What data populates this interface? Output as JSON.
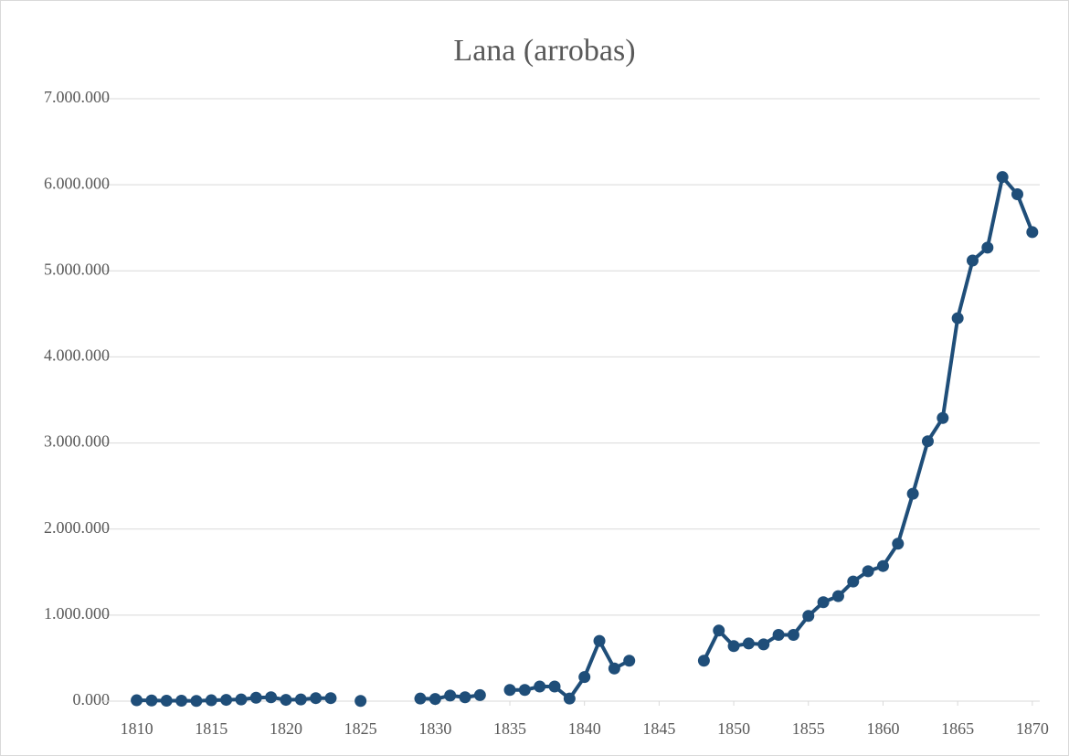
{
  "chart_data": {
    "type": "line",
    "title": "Lana (arrobas)",
    "x": [
      1810,
      1811,
      1812,
      1813,
      1814,
      1815,
      1816,
      1817,
      1818,
      1819,
      1820,
      1821,
      1822,
      1823,
      1824,
      1825,
      1826,
      1827,
      1828,
      1829,
      1830,
      1831,
      1832,
      1833,
      1834,
      1835,
      1836,
      1837,
      1838,
      1839,
      1840,
      1841,
      1842,
      1843,
      1844,
      1845,
      1846,
      1847,
      1848,
      1849,
      1850,
      1851,
      1852,
      1853,
      1854,
      1855,
      1856,
      1857,
      1858,
      1859,
      1860,
      1861,
      1862,
      1863,
      1864,
      1865,
      1866,
      1867,
      1868,
      1869,
      1870
    ],
    "series": [
      {
        "name": "Lana (arrobas)",
        "color": "#1f4e79",
        "values": [
          10000,
          8000,
          5000,
          5000,
          3000,
          10000,
          15000,
          20000,
          40000,
          45000,
          15000,
          20000,
          35000,
          35000,
          null,
          3000,
          null,
          null,
          null,
          30000,
          25000,
          65000,
          45000,
          70000,
          null,
          130000,
          130000,
          170000,
          170000,
          30000,
          280000,
          700000,
          380000,
          470000,
          null,
          null,
          null,
          null,
          470000,
          820000,
          640000,
          670000,
          660000,
          770000,
          770000,
          990000,
          1150000,
          1220000,
          1390000,
          1510000,
          1570000,
          1830000,
          2410000,
          3020000,
          3290000,
          4450000,
          5120000,
          5270000,
          6090000,
          5890000,
          5450000
        ]
      }
    ],
    "xlim": [
      1807.7,
      1870.5
    ],
    "xticks": [
      1810,
      1815,
      1820,
      1825,
      1830,
      1835,
      1840,
      1845,
      1850,
      1855,
      1860,
      1865,
      1870
    ],
    "ylim": [
      0,
      7000000
    ],
    "yticks": [
      {
        "value": 0,
        "label": "0.000"
      },
      {
        "value": 1000000,
        "label": "1.000.000"
      },
      {
        "value": 2000000,
        "label": "2.000.000"
      },
      {
        "value": 3000000,
        "label": "3.000.000"
      },
      {
        "value": 4000000,
        "label": "4.000.000"
      },
      {
        "value": 5000000,
        "label": "5.000.000"
      },
      {
        "value": 6000000,
        "label": "6.000.000"
      },
      {
        "value": 7000000,
        "label": "7.000.000"
      }
    ],
    "grid": true
  }
}
